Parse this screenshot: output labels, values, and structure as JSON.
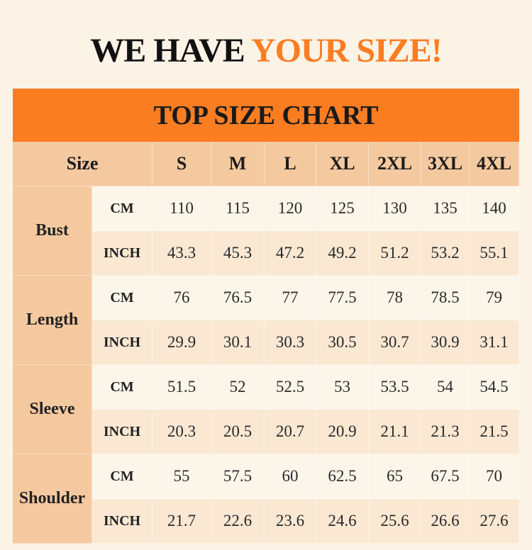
{
  "headline": {
    "part1": "WE HAVE ",
    "part2": "YOUR SIZE!"
  },
  "colors": {
    "accent": "#fb7d22",
    "header": "#f5c9a0",
    "background": "#fbf3e6"
  },
  "table": {
    "title": "TOP SIZE CHART",
    "size_header": "Size",
    "sizes": [
      "S",
      "M",
      "L",
      "XL",
      "2XL",
      "3XL",
      "4XL"
    ],
    "measurements": [
      {
        "label": "Bust",
        "rows": [
          {
            "unit": "CM",
            "values": [
              "110",
              "115",
              "120",
              "125",
              "130",
              "135",
              "140"
            ]
          },
          {
            "unit": "INCH",
            "values": [
              "43.3",
              "45.3",
              "47.2",
              "49.2",
              "51.2",
              "53.2",
              "55.1"
            ]
          }
        ]
      },
      {
        "label": "Length",
        "rows": [
          {
            "unit": "CM",
            "values": [
              "76",
              "76.5",
              "77",
              "77.5",
              "78",
              "78.5",
              "79"
            ]
          },
          {
            "unit": "INCH",
            "values": [
              "29.9",
              "30.1",
              "30.3",
              "30.5",
              "30.7",
              "30.9",
              "31.1"
            ]
          }
        ]
      },
      {
        "label": "Sleeve",
        "rows": [
          {
            "unit": "CM",
            "values": [
              "51.5",
              "52",
              "52.5",
              "53",
              "53.5",
              "54",
              "54.5"
            ]
          },
          {
            "unit": "INCH",
            "values": [
              "20.3",
              "20.5",
              "20.7",
              "20.9",
              "21.1",
              "21.3",
              "21.5"
            ]
          }
        ]
      },
      {
        "label": "Shoulder",
        "rows": [
          {
            "unit": "CM",
            "values": [
              "55",
              "57.5",
              "60",
              "62.5",
              "65",
              "67.5",
              "70"
            ]
          },
          {
            "unit": "INCH",
            "values": [
              "21.7",
              "22.6",
              "23.6",
              "24.6",
              "25.6",
              "26.6",
              "27.6"
            ]
          }
        ]
      }
    ]
  }
}
